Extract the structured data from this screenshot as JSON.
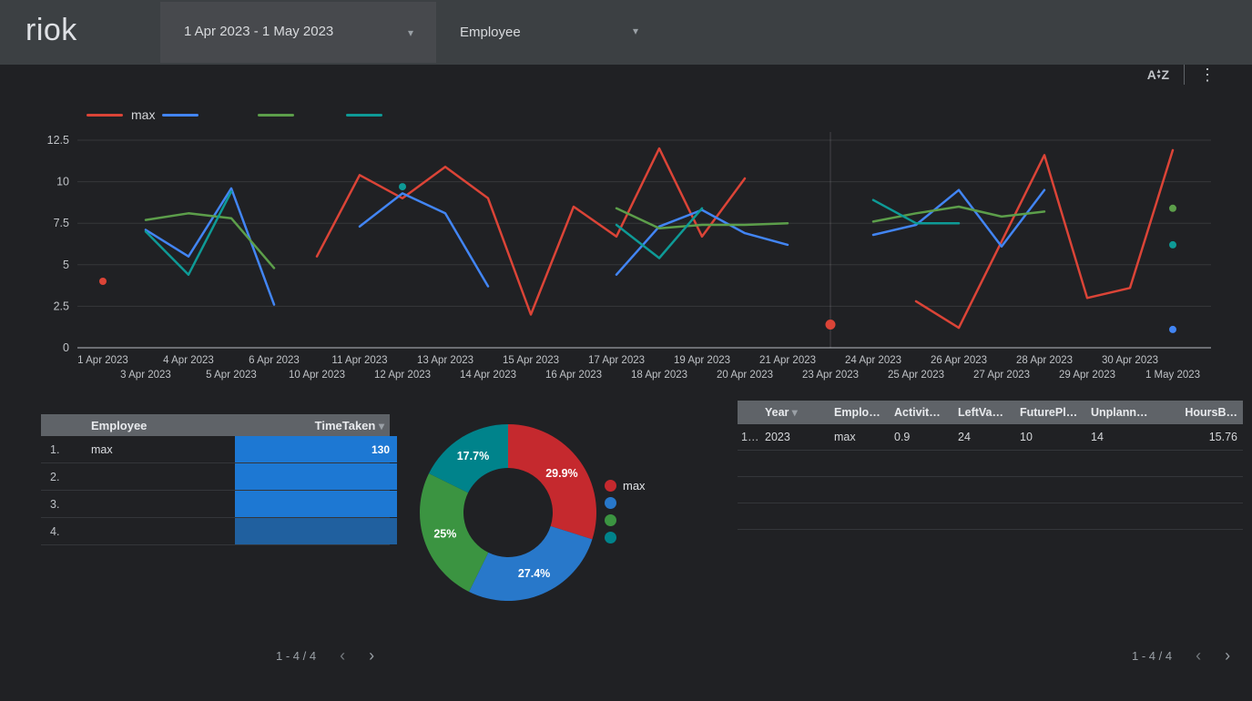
{
  "header": {
    "logo": "riok",
    "date_range": {
      "label": "1 Apr 2023 - 1 May 2023"
    },
    "dimension_filter": {
      "label": "Employee"
    }
  },
  "icons": {
    "caret_down": "▾",
    "arrow_up": "▴",
    "arrow_down": "▾",
    "sort_a": "A",
    "sort_z": "Z",
    "kebab": "⋮",
    "prev": "‹",
    "next": "›"
  },
  "theme": {
    "page_bg": "#202124",
    "header_bg": "#3c4043",
    "control_bg": "#47494d",
    "table_header_bg": "#5f6368",
    "gridline": "rgba(255,255,255,0.10)",
    "zero_line": "#85888d",
    "highlight_line": "rgba(255,255,255,0.16)"
  },
  "chart_data": [
    {
      "type": "line",
      "title": "",
      "legend_position": "top-left",
      "grid": true,
      "ylim": [
        0,
        12.5
      ],
      "yticks": [
        0,
        2.5,
        5,
        7.5,
        10,
        12.5
      ],
      "highlight_category": "23 Apr 2023",
      "categories": [
        "1 Apr 2023",
        "3 Apr 2023",
        "4 Apr 2023",
        "5 Apr 2023",
        "6 Apr 2023",
        "10 Apr 2023",
        "11 Apr 2023",
        "12 Apr 2023",
        "13 Apr 2023",
        "14 Apr 2023",
        "15 Apr 2023",
        "16 Apr 2023",
        "17 Apr 2023",
        "18 Apr 2023",
        "19 Apr 2023",
        "20 Apr 2023",
        "21 Apr 2023",
        "23 Apr 2023",
        "24 Apr 2023",
        "25 Apr 2023",
        "26 Apr 2023",
        "27 Apr 2023",
        "28 Apr 2023",
        "29 Apr 2023",
        "30 Apr 2023",
        "1 May 2023"
      ],
      "series": [
        {
          "name": "max",
          "color": "#db4437",
          "values": [
            4,
            null,
            null,
            null,
            null,
            5.5,
            10.4,
            9,
            10.9,
            9,
            2,
            8.5,
            6.7,
            12,
            6.7,
            10.2,
            null,
            1.4,
            null,
            2.8,
            1.2,
            6.4,
            11.6,
            3,
            3.6,
            11.9
          ]
        },
        {
          "name": "",
          "color": "#4285f4",
          "values": [
            null,
            7.1,
            5.5,
            9.6,
            2.6,
            null,
            7.3,
            9.3,
            8.1,
            3.7,
            null,
            null,
            4.4,
            7.3,
            8.3,
            6.9,
            6.2,
            null,
            6.8,
            7.4,
            9.5,
            6.1,
            9.5,
            null,
            null,
            1.1
          ]
        },
        {
          "name": "",
          "color": "#5c9e4a",
          "values": [
            null,
            7.7,
            8.1,
            7.8,
            4.8,
            null,
            null,
            null,
            null,
            null,
            null,
            null,
            8.4,
            7.2,
            7.4,
            7.4,
            7.5,
            null,
            7.6,
            8.1,
            8.5,
            7.9,
            8.2,
            null,
            null,
            8.4
          ]
        },
        {
          "name": "",
          "color": "#0e9a96",
          "values": [
            null,
            7,
            4.4,
            9.4,
            null,
            null,
            null,
            9.7,
            null,
            null,
            null,
            null,
            7.4,
            5.4,
            8.4,
            null,
            null,
            null,
            8.9,
            7.5,
            7.5,
            null,
            null,
            null,
            null,
            6.2
          ]
        }
      ]
    },
    {
      "type": "pie",
      "legend_position": "right",
      "slices": [
        {
          "name": "max",
          "pct": 29.9,
          "label": "29.9%",
          "color": "#c5292e"
        },
        {
          "name": "",
          "pct": 27.4,
          "label": "27.4%",
          "color": "#2878ca"
        },
        {
          "name": "",
          "pct": 25,
          "label": "25%",
          "color": "#3b9441"
        },
        {
          "name": "",
          "pct": 17.7,
          "label": "17.7%",
          "color": "#00838b"
        }
      ]
    },
    {
      "type": "table",
      "name": "timetaken-table",
      "columns": [
        "Employee",
        "TimeTaken"
      ],
      "sorted_by": "TimeTaken",
      "bar_color": "#1d78d3",
      "bar_color_last": "#20609f",
      "rows": [
        {
          "num": "1.",
          "employee": "max",
          "value": "130",
          "bar_pct": 100
        },
        {
          "num": "2.",
          "employee": "",
          "value": "",
          "bar_pct": 100
        },
        {
          "num": "3.",
          "employee": "",
          "value": "",
          "bar_pct": 100
        },
        {
          "num": "4.",
          "employee": "",
          "value": "",
          "bar_pct": 100
        }
      ]
    },
    {
      "type": "table",
      "name": "details-table",
      "columns": [
        "Year",
        "Emplo…",
        "Activit…",
        "LeftVa…",
        "FuturePl…",
        "Unplann…",
        "HoursB…"
      ],
      "sorted_by": "Year",
      "rows": [
        {
          "num": "1…",
          "cells": [
            "2023",
            "max",
            "0.9",
            "24",
            "10",
            "14",
            "15.76"
          ]
        },
        {
          "num": "",
          "cells": [
            "",
            "",
            "",
            "",
            "",
            "",
            ""
          ]
        },
        {
          "num": "",
          "cells": [
            "",
            "",
            "",
            "",
            "",
            "",
            ""
          ]
        },
        {
          "num": "",
          "cells": [
            "",
            "",
            "",
            "",
            "",
            "",
            ""
          ]
        }
      ]
    }
  ],
  "pagination_left": {
    "label": "1 - 4 / 4"
  },
  "pagination_right": {
    "label": "1 - 4 / 4"
  }
}
